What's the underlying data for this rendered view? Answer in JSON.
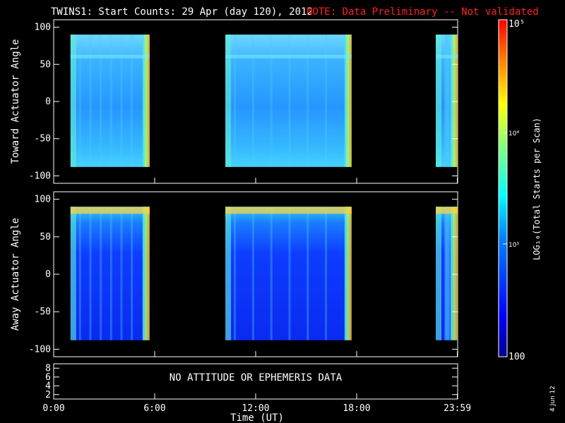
{
  "title": "TWINS1: Start Counts: 29 Apr (day 120), 2012",
  "note": "NOTE: Data Preliminary -- Not validated",
  "date_stamp": "4 Jun 12",
  "colorbar": {
    "label": "LOG₁₀(Total Starts per Scan)",
    "ticks": [
      "100",
      "10³",
      "10⁴",
      "10⁵"
    ],
    "range": [
      100,
      100000
    ],
    "scale": "log",
    "colormap": "rainbow-jet"
  },
  "chart_data": [
    {
      "type": "heatmap",
      "name": "toward",
      "ylabel": "Toward Actuator Angle",
      "yticks": [
        "-100",
        "-50",
        "0",
        "50",
        "100"
      ],
      "ylim": [
        -110,
        110
      ],
      "xlim": [
        0,
        24
      ],
      "data_y_range": [
        -88,
        90
      ],
      "coverage_hours": [
        [
          1.0,
          5.7
        ],
        [
          10.2,
          17.7
        ],
        [
          22.7,
          24
        ]
      ],
      "description_levels": "mostly ~10^3 (cyan-blue), high ~10^4 near edges"
    },
    {
      "type": "heatmap",
      "name": "away",
      "ylabel": "Away Actuator Angle",
      "yticks": [
        "-100",
        "-50",
        "0",
        "50",
        "100"
      ],
      "ylim": [
        -110,
        110
      ],
      "xlim": [
        0,
        24
      ],
      "data_y_range": [
        -88,
        90
      ],
      "coverage_hours": [
        [
          1.0,
          5.7
        ],
        [
          10.2,
          17.7
        ],
        [
          22.7,
          24
        ]
      ]
    },
    {
      "type": "table",
      "name": "attitude",
      "message": "NO ATTITUDE OR EPHEMERIS DATA",
      "yticks": [
        "2",
        "4",
        "6",
        "8"
      ],
      "ylim": [
        1,
        9
      ]
    }
  ],
  "xaxis": {
    "label": "Time (UT)",
    "ticks": [
      {
        "label": "0:00",
        "hour": 0
      },
      {
        "label": "6:00",
        "hour": 6
      },
      {
        "label": "12:00",
        "hour": 12
      },
      {
        "label": "18:00",
        "hour": 18
      },
      {
        "label": "23:59",
        "hour": 23.98
      }
    ]
  }
}
